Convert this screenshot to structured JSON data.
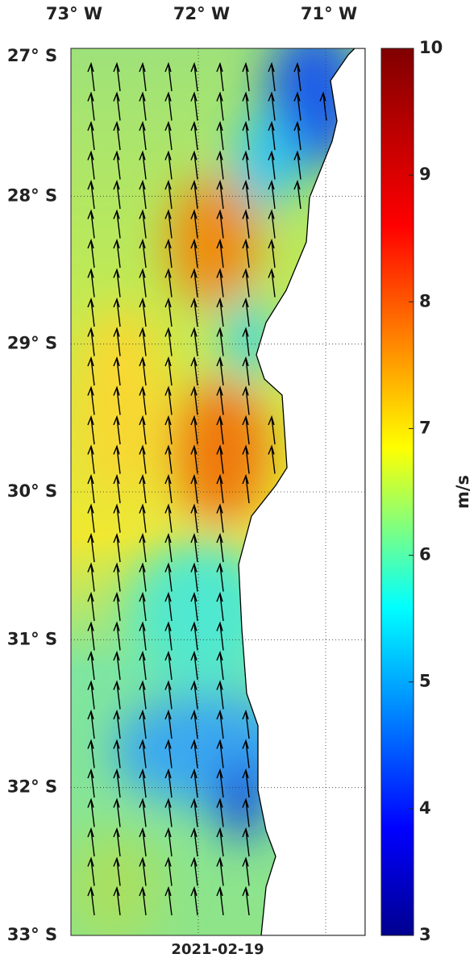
{
  "map": {
    "date": "2021-02-19",
    "xlim": [
      -73,
      -70.69
    ],
    "ylim": [
      -33,
      -27
    ],
    "xticks": [
      {
        "value": -73,
        "label": "73° W"
      },
      {
        "value": -72,
        "label": "72° W"
      },
      {
        "value": -71,
        "label": "71° W"
      }
    ],
    "yticks": [
      {
        "value": -27,
        "label": "27° S"
      },
      {
        "value": -28,
        "label": "28° S"
      },
      {
        "value": -29,
        "label": "29° S"
      },
      {
        "value": -30,
        "label": "30° S"
      },
      {
        "value": -31,
        "label": "31° S"
      },
      {
        "value": -32,
        "label": "32° S"
      },
      {
        "value": -33,
        "label": "33° S"
      }
    ],
    "colorbar": {
      "label": "m/s",
      "clim": [
        3,
        10
      ],
      "ticks": [
        3,
        4,
        5,
        6,
        7,
        8,
        9,
        10
      ]
    }
  }
}
